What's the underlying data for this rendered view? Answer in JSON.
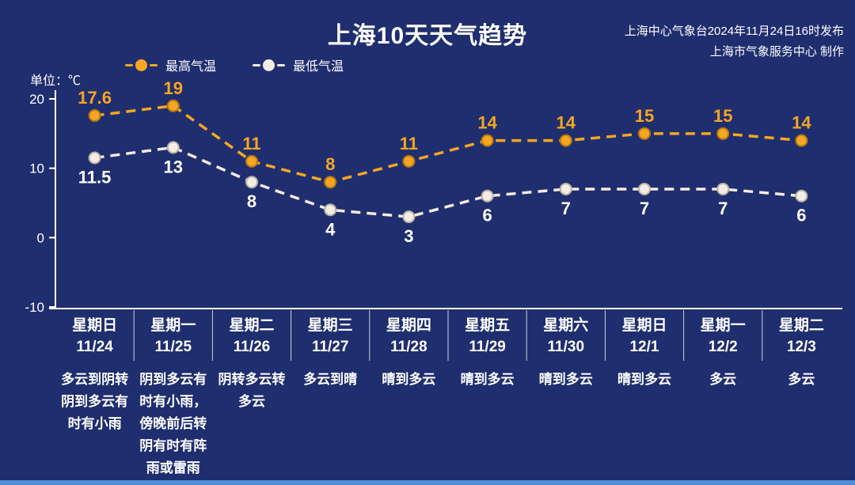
{
  "page": {
    "title": "上海10天天气趋势",
    "source_line1": "上海中心气象台2024年11月24日16时发布",
    "source_line2": "上海市气象服务中心 制作",
    "unit_label": "单位：℃"
  },
  "colors": {
    "background": "#1F2E6E",
    "max_series": "#F5A623",
    "min_series": "#F3EDE3",
    "axis": "#FFFFFF",
    "divider": "#C8D2EA",
    "bottom_strip": "#4E8FD7"
  },
  "chart_data": {
    "type": "line",
    "title": "上海10天天气趋势",
    "xlabel": "",
    "ylabel": "℃",
    "ylim": [
      -10,
      20
    ],
    "yticks": [
      20,
      10,
      0,
      -10
    ],
    "grid": false,
    "legend_position": "top-left",
    "line_style": "dashed",
    "categories": [
      "11/24",
      "11/25",
      "11/26",
      "11/27",
      "11/28",
      "11/29",
      "11/30",
      "12/1",
      "12/2",
      "12/3"
    ],
    "series": [
      {
        "name": "最高气温",
        "color": "#F5A623",
        "values": [
          17.6,
          19,
          11,
          8,
          11,
          14,
          14,
          15,
          15,
          14
        ]
      },
      {
        "name": "最低气温",
        "color": "#F3EDE3",
        "values": [
          11.5,
          13,
          8,
          4,
          3,
          6,
          7,
          7,
          7,
          6
        ]
      }
    ]
  },
  "days": [
    {
      "weekday": "星期日",
      "date": "11/24",
      "desc": "多云到阴转阴到多云有时有小雨"
    },
    {
      "weekday": "星期一",
      "date": "11/25",
      "desc": "阴到多云有时有小雨，傍晚前后转阴有时有阵雨或雷雨"
    },
    {
      "weekday": "星期二",
      "date": "11/26",
      "desc": "阴转多云转多云"
    },
    {
      "weekday": "星期三",
      "date": "11/27",
      "desc": "多云到晴"
    },
    {
      "weekday": "星期四",
      "date": "11/28",
      "desc": "晴到多云"
    },
    {
      "weekday": "星期五",
      "date": "11/29",
      "desc": "晴到多云"
    },
    {
      "weekday": "星期六",
      "date": "11/30",
      "desc": "晴到多云"
    },
    {
      "weekday": "星期日",
      "date": "12/1",
      "desc": "晴到多云"
    },
    {
      "weekday": "星期一",
      "date": "12/2",
      "desc": "多云"
    },
    {
      "weekday": "星期二",
      "date": "12/3",
      "desc": "多云"
    }
  ]
}
